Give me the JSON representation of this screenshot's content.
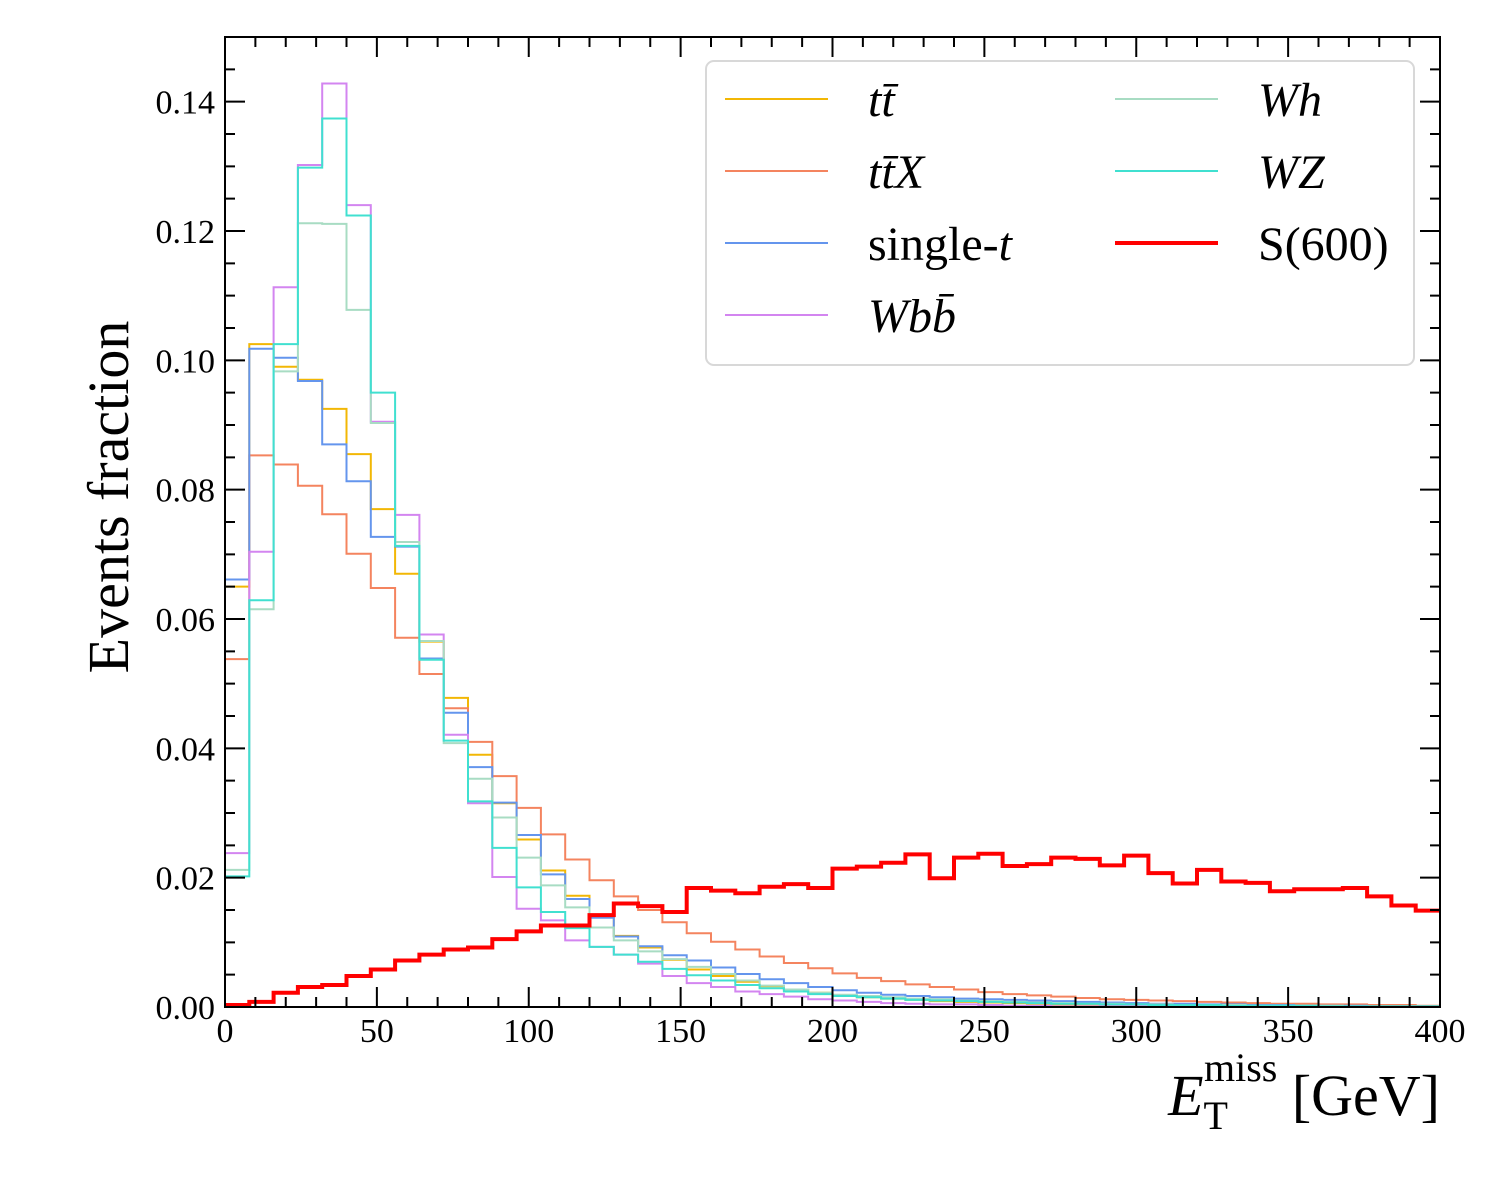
{
  "chart_data": {
    "type": "line",
    "drawstyle": "steps",
    "title": "",
    "xlabel": {
      "main": "E",
      "sub": "T",
      "sup": "miss",
      "unit": "[GeV]"
    },
    "ylabel": "Events fraction",
    "xlim": [
      0,
      400
    ],
    "ylim": [
      0,
      0.15
    ],
    "xticks": [
      0,
      50,
      100,
      150,
      200,
      250,
      300,
      350,
      400
    ],
    "xtick_labels": [
      "0",
      "50",
      "100",
      "150",
      "200",
      "250",
      "300",
      "350",
      "400"
    ],
    "yticks": [
      0,
      0.02,
      0.04,
      0.06,
      0.08,
      0.1,
      0.12,
      0.14
    ],
    "ytick_labels": [
      "0.00",
      "0.02",
      "0.04",
      "0.06",
      "0.08",
      "0.10",
      "0.12",
      "0.14"
    ],
    "grid": false,
    "legend_position": "top-right",
    "bin_width": 8,
    "series": [
      {
        "name": "ttbar",
        "label_html": "<tspan font-style='italic'>t</tspan><tspan font-style='italic'>t̄</tspan>",
        "color": "#f2b705",
        "width": 2,
        "values": [
          0.065,
          0.1025,
          0.099,
          0.097,
          0.0925,
          0.0855,
          0.077,
          0.067,
          0.0565,
          0.0478,
          0.039,
          0.0315,
          0.0259,
          0.0211,
          0.0172,
          0.014,
          0.011,
          0.0092,
          0.0073,
          0.0058,
          0.0048,
          0.0039,
          0.0032,
          0.0027,
          0.0022,
          0.0018,
          0.0015,
          0.0013,
          0.0011,
          0.0009,
          0.0008,
          0.0007,
          0.0006,
          0.0005,
          0.0004,
          0.0004,
          0.0003,
          0.0003,
          0.0002,
          0.0002,
          0.0002,
          0.0001,
          0.0001,
          0.0001,
          0.0001,
          0.0001,
          0.0001,
          0.0001,
          0.0001,
          0.0
        ]
      },
      {
        "name": "ttX",
        "label_html": "<tspan font-style='italic'>t</tspan><tspan font-style='italic'>t̄</tspan><tspan font-style='italic'>X</tspan>",
        "color": "#f4845f",
        "width": 2,
        "values": [
          0.0538,
          0.0853,
          0.0839,
          0.0806,
          0.0762,
          0.0701,
          0.0648,
          0.0571,
          0.0515,
          0.0462,
          0.041,
          0.0357,
          0.0308,
          0.0267,
          0.0228,
          0.0196,
          0.0171,
          0.015,
          0.0131,
          0.0114,
          0.0101,
          0.0089,
          0.0078,
          0.0068,
          0.006,
          0.0052,
          0.0045,
          0.004,
          0.0035,
          0.0031,
          0.0027,
          0.0023,
          0.002,
          0.0018,
          0.0016,
          0.0014,
          0.0012,
          0.0011,
          0.001,
          0.0009,
          0.0008,
          0.0007,
          0.0006,
          0.0005,
          0.0005,
          0.0004,
          0.0004,
          0.0003,
          0.0003,
          0.0002
        ]
      },
      {
        "name": "single-t",
        "label_html": "single-<tspan font-style='italic'>t</tspan>",
        "color": "#6495ed",
        "width": 2,
        "values": [
          0.0661,
          0.1018,
          0.1004,
          0.0968,
          0.087,
          0.0813,
          0.0727,
          0.0712,
          0.0539,
          0.0455,
          0.0371,
          0.0316,
          0.0266,
          0.0205,
          0.0167,
          0.0138,
          0.0109,
          0.0094,
          0.008,
          0.0072,
          0.0061,
          0.0051,
          0.0043,
          0.0037,
          0.0031,
          0.0026,
          0.0022,
          0.0019,
          0.0017,
          0.0015,
          0.0013,
          0.0012,
          0.0011,
          0.001,
          0.0009,
          0.0008,
          0.0007,
          0.0006,
          0.0005,
          0.0005,
          0.0004,
          0.0004,
          0.0003,
          0.0003,
          0.0002,
          0.0002,
          0.0002,
          0.0001,
          0.0001,
          0.0001
        ]
      },
      {
        "name": "Wbb",
        "label_html": "<tspan font-style='italic'>Wb</tspan><tspan font-style='italic'>b̄</tspan>",
        "color": "#d385f0",
        "width": 2,
        "values": [
          0.0238,
          0.0704,
          0.1113,
          0.1302,
          0.1428,
          0.124,
          0.0905,
          0.0761,
          0.0576,
          0.0421,
          0.0315,
          0.0201,
          0.0152,
          0.0134,
          0.0103,
          0.0093,
          0.0081,
          0.0067,
          0.0048,
          0.0037,
          0.0031,
          0.0024,
          0.002,
          0.0016,
          0.0012,
          0.001,
          0.0008,
          0.0006,
          0.0005,
          0.0004,
          0.0004,
          0.0003,
          0.0002,
          0.0002,
          0.0001,
          0.0001,
          0.0001,
          0.0001,
          0.0001,
          0.0,
          0.0,
          0.0,
          0.0,
          0.0,
          0.0,
          0.0,
          0.0,
          0.0,
          0.0,
          0.0
        ]
      },
      {
        "name": "Wh",
        "label_html": "<tspan font-style='italic'>Wh</tspan>",
        "color": "#a8dcc3",
        "width": 2,
        "values": [
          0.0212,
          0.0615,
          0.0983,
          0.1212,
          0.1211,
          0.1078,
          0.0903,
          0.0719,
          0.0566,
          0.0408,
          0.0353,
          0.0293,
          0.0231,
          0.0188,
          0.0154,
          0.0123,
          0.0103,
          0.0086,
          0.0074,
          0.0062,
          0.0051,
          0.0041,
          0.0033,
          0.0027,
          0.0022,
          0.0019,
          0.0017,
          0.0015,
          0.0013,
          0.0012,
          0.001,
          0.0009,
          0.0008,
          0.0007,
          0.0006,
          0.0005,
          0.0005,
          0.0004,
          0.0004,
          0.0003,
          0.0003,
          0.0003,
          0.0002,
          0.0002,
          0.0002,
          0.0002,
          0.0001,
          0.0001,
          0.0001,
          0.0001
        ]
      },
      {
        "name": "WZ",
        "label_html": "<tspan font-style='italic'>WZ</tspan>",
        "color": "#40e0d0",
        "width": 2,
        "values": [
          0.0202,
          0.0629,
          0.1025,
          0.1298,
          0.1374,
          0.1224,
          0.095,
          0.0713,
          0.0537,
          0.0412,
          0.0318,
          0.0246,
          0.0185,
          0.0147,
          0.0122,
          0.0093,
          0.0081,
          0.007,
          0.0059,
          0.0049,
          0.0041,
          0.0034,
          0.0029,
          0.0024,
          0.002,
          0.0017,
          0.0015,
          0.0013,
          0.0011,
          0.001,
          0.0009,
          0.0008,
          0.0007,
          0.0006,
          0.0005,
          0.0005,
          0.0004,
          0.0004,
          0.0003,
          0.0003,
          0.0003,
          0.0002,
          0.0002,
          0.0002,
          0.0002,
          0.0001,
          0.0001,
          0.0001,
          0.0001,
          0.0001
        ]
      },
      {
        "name": "S(600)",
        "label_html": "S(600)",
        "color": "#ff0000",
        "width": 4,
        "values": [
          0.0003,
          0.0008,
          0.0022,
          0.0031,
          0.0034,
          0.0048,
          0.0058,
          0.0072,
          0.0081,
          0.0089,
          0.0092,
          0.0105,
          0.0117,
          0.0126,
          0.0126,
          0.0142,
          0.016,
          0.0156,
          0.0147,
          0.0184,
          0.018,
          0.0176,
          0.0186,
          0.019,
          0.0184,
          0.0214,
          0.0217,
          0.0223,
          0.0236,
          0.0199,
          0.0231,
          0.0237,
          0.0218,
          0.0221,
          0.0231,
          0.0229,
          0.0219,
          0.0234,
          0.0207,
          0.0191,
          0.0212,
          0.0194,
          0.0192,
          0.0179,
          0.0182,
          0.0182,
          0.0184,
          0.0171,
          0.0157,
          0.0149
        ]
      }
    ]
  }
}
